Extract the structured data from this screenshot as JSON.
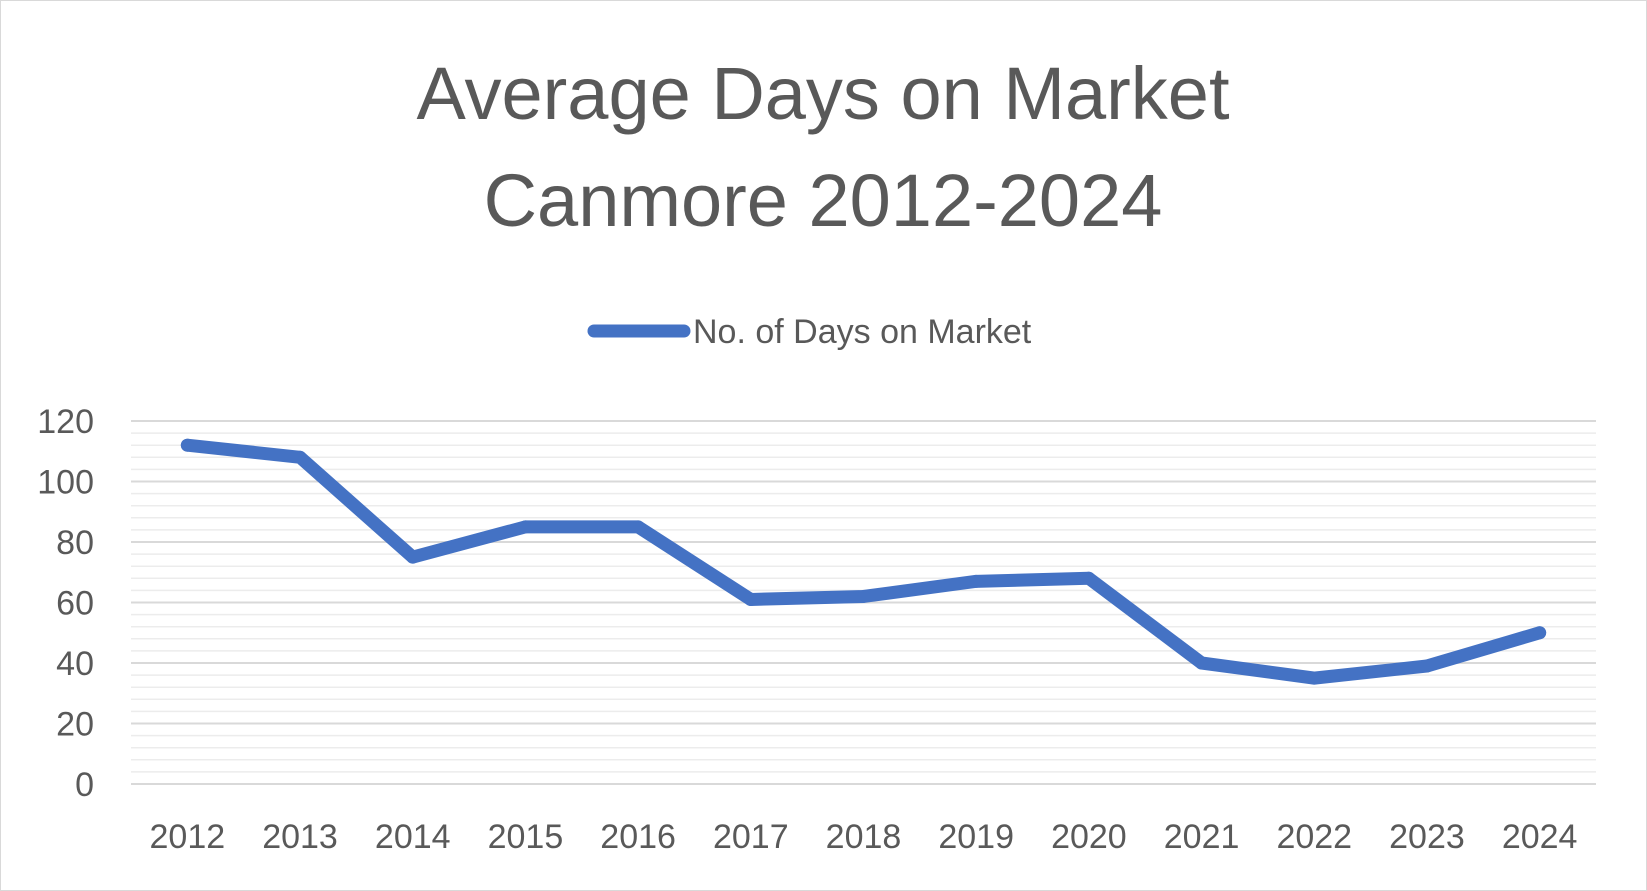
{
  "chart_data": {
    "type": "line",
    "title": "Average Days on Market",
    "subtitle": "Canmore 2012-2024",
    "xlabel": "",
    "ylabel": "",
    "categories": [
      "2012",
      "2013",
      "2014",
      "2015",
      "2016",
      "2017",
      "2018",
      "2019",
      "2020",
      "2021",
      "2022",
      "2023",
      "2024"
    ],
    "series": [
      {
        "name": "No. of Days on Market",
        "color": "#4472C4",
        "values": [
          112,
          108,
          75,
          85,
          85,
          61,
          62,
          67,
          68,
          40,
          35,
          39,
          50
        ]
      }
    ],
    "ylim": [
      0,
      120
    ],
    "yticks": [
      0,
      20,
      40,
      60,
      80,
      100,
      120
    ],
    "ytick_labels": [
      "0",
      "20",
      "40",
      "60",
      "80",
      "100",
      "120"
    ],
    "grid": true,
    "minor_grid": true,
    "legend": "top-center"
  }
}
